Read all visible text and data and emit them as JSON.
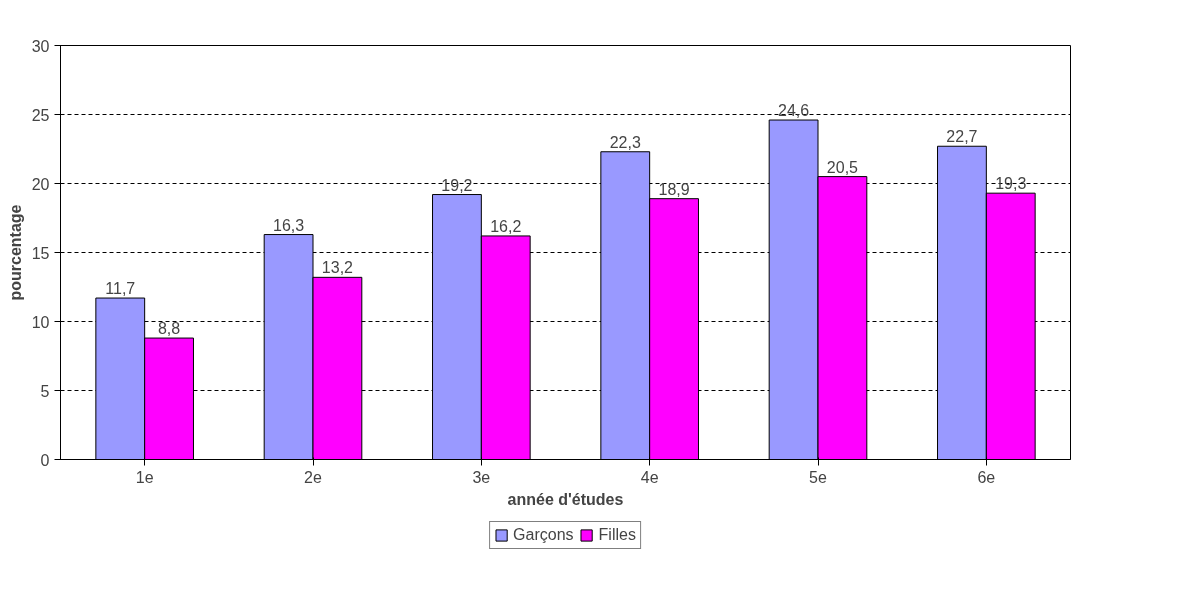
{
  "chart_data": {
    "type": "bar",
    "xlabel": "année d'études",
    "ylabel": "pourcentage",
    "categories": [
      "1e",
      "2e",
      "3e",
      "4e",
      "5e",
      "6e"
    ],
    "series": [
      {
        "name": "Garçons",
        "color": "#9999ff",
        "values": [
          11.7,
          16.3,
          19.2,
          22.3,
          24.6,
          22.7
        ],
        "value_labels": [
          "11,7",
          "16,3",
          "19,2",
          "22,3",
          "24,6",
          "22,7"
        ]
      },
      {
        "name": "Filles",
        "color": "#ff00ff",
        "values": [
          8.8,
          13.2,
          16.2,
          18.9,
          20.5,
          19.3
        ],
        "value_labels": [
          "8,8",
          "13,2",
          "16,2",
          "18,9",
          "20,5",
          "19,3"
        ]
      }
    ],
    "ylim": [
      0,
      30
    ],
    "yticks": [
      0,
      5,
      10,
      15,
      20,
      25,
      30
    ],
    "grid": "y",
    "legend": "bottom"
  }
}
